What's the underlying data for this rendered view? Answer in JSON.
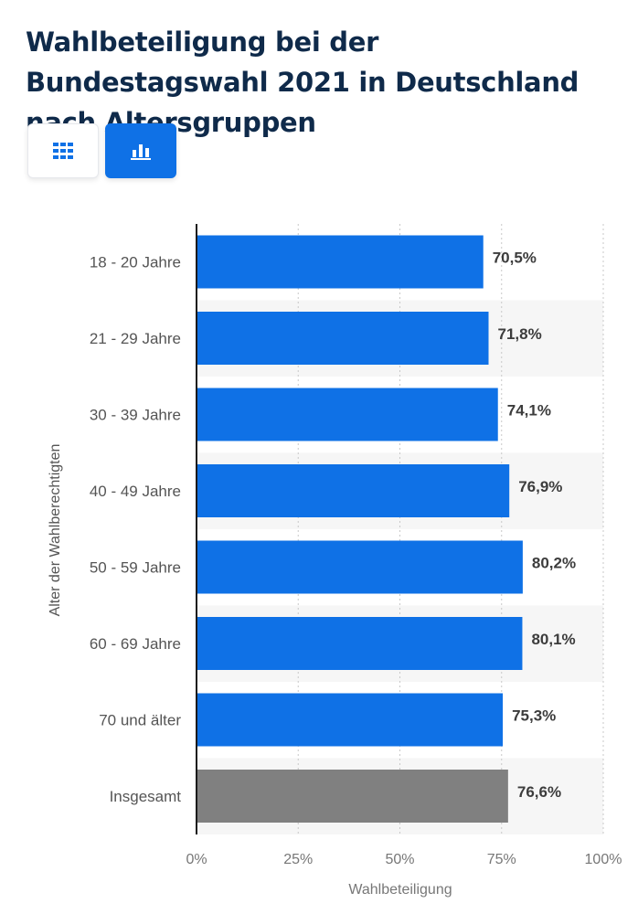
{
  "title": "Wahlbeteiligung bei der Bundestagswahl 2021 in Deutschland nach Altersgruppen",
  "toolbar": {
    "table_icon": "table-grid-icon",
    "chart_icon": "bar-chart-icon"
  },
  "colors": {
    "bar": "#0f71e6",
    "total_bar": "#808080",
    "title": "#0f2a4a",
    "band": "#f6f6f6"
  },
  "chart_data": {
    "type": "bar",
    "orientation": "horizontal",
    "categories": [
      "18 - 20 Jahre",
      "21 - 29 Jahre",
      "30 - 39 Jahre",
      "40 - 49 Jahre",
      "50 - 59 Jahre",
      "60 - 69 Jahre",
      "70 und älter",
      "Insgesamt"
    ],
    "values": [
      70.5,
      71.8,
      74.1,
      76.9,
      80.2,
      80.1,
      75.3,
      76.6
    ],
    "value_labels": [
      "70,5%",
      "71,8%",
      "74,1%",
      "76,9%",
      "80,2%",
      "80,1%",
      "75,3%",
      "76,6%"
    ],
    "highlight_category": "Insgesamt",
    "xlabel": "Wahlbeteiligung",
    "ylabel": "Alter der Wahlberechtigten",
    "xlim": [
      0,
      100
    ],
    "xticks": [
      0,
      25,
      50,
      75,
      100
    ],
    "xtick_labels": [
      "0%",
      "25%",
      "50%",
      "75%",
      "100%"
    ],
    "grid": "vertical dashed",
    "legend": "none"
  }
}
